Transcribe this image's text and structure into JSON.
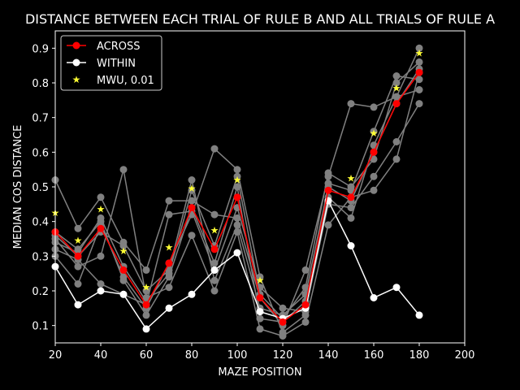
{
  "chart_data": {
    "type": "line",
    "title": "DISTANCE BETWEEN EACH TRIAL OF RULE B AND ALL TRIALS OF RULE A",
    "xlabel": "MAZE POSITION",
    "ylabel": "MEDIAN COS DISTANCE",
    "xlim": [
      20,
      200
    ],
    "ylim": [
      0.05,
      0.95
    ],
    "xticks": [
      20,
      40,
      60,
      80,
      100,
      120,
      140,
      160,
      180,
      200
    ],
    "yticks": [
      0.1,
      0.2,
      0.3,
      0.4,
      0.5,
      0.6,
      0.7,
      0.8,
      0.9
    ],
    "grid": false,
    "legend_position": "upper-left",
    "x": [
      20,
      30,
      40,
      50,
      60,
      70,
      80,
      90,
      100,
      110,
      120,
      130,
      140,
      150,
      160,
      170,
      180
    ],
    "trial_series": [
      {
        "color": "#808080",
        "values": [
          0.52,
          0.38,
          0.47,
          0.34,
          0.26,
          0.46,
          0.46,
          0.42,
          0.41,
          0.18,
          0.1,
          0.26,
          0.53,
          0.74,
          0.73,
          0.76,
          0.9
        ]
      },
      {
        "color": "#808080",
        "values": [
          0.3,
          0.22,
          0.39,
          0.24,
          0.15,
          0.28,
          0.42,
          0.61,
          0.55,
          0.24,
          0.08,
          0.13,
          0.51,
          0.49,
          0.66,
          0.82,
          0.81
        ]
      },
      {
        "color": "#808080",
        "values": [
          0.35,
          0.27,
          0.3,
          0.55,
          0.18,
          0.21,
          0.36,
          0.2,
          0.37,
          0.09,
          0.07,
          0.11,
          0.39,
          0.47,
          0.49,
          0.58,
          0.83
        ]
      },
      {
        "color": "#808080",
        "values": [
          0.37,
          0.32,
          0.4,
          0.23,
          0.13,
          0.24,
          0.44,
          0.28,
          0.5,
          0.12,
          0.11,
          0.17,
          0.47,
          0.41,
          0.62,
          0.76,
          0.78
        ]
      },
      {
        "color": "#808080",
        "values": [
          0.32,
          0.29,
          0.22,
          0.19,
          0.16,
          0.42,
          0.43,
          0.26,
          0.44,
          0.21,
          0.15,
          0.14,
          0.45,
          0.44,
          0.53,
          0.63,
          0.74
        ]
      },
      {
        "color": "#808080",
        "values": [
          0.36,
          0.3,
          0.37,
          0.33,
          0.2,
          0.26,
          0.52,
          0.23,
          0.39,
          0.15,
          0.13,
          0.19,
          0.5,
          0.46,
          0.6,
          0.74,
          0.84
        ]
      },
      {
        "color": "#808080",
        "values": [
          0.34,
          0.31,
          0.41,
          0.27,
          0.17,
          0.25,
          0.49,
          0.33,
          0.53,
          0.19,
          0.12,
          0.21,
          0.54,
          0.5,
          0.58,
          0.8,
          0.86
        ]
      }
    ],
    "series": [
      {
        "name": "ACROSS",
        "color": "#ff0000",
        "values": [
          0.37,
          0.3,
          0.38,
          0.26,
          0.16,
          0.28,
          0.44,
          0.32,
          0.47,
          0.18,
          0.11,
          0.16,
          0.49,
          0.47,
          0.6,
          0.74,
          0.83
        ]
      },
      {
        "name": "WITHIN",
        "color": "#ffffff",
        "values": [
          0.27,
          0.16,
          0.2,
          0.19,
          0.09,
          0.15,
          0.19,
          0.26,
          0.31,
          0.14,
          0.12,
          0.15,
          0.46,
          0.33,
          0.18,
          0.21,
          0.13
        ]
      }
    ],
    "significance": {
      "name": "MWU, 0.01",
      "color": "#ffff33",
      "x": [
        20,
        30,
        40,
        50,
        60,
        70,
        80,
        90,
        100,
        110,
        150,
        160,
        170,
        180
      ],
      "y": [
        0.425,
        0.345,
        0.435,
        0.315,
        0.21,
        0.325,
        0.495,
        0.375,
        0.52,
        0.23,
        0.525,
        0.655,
        0.785,
        0.885
      ]
    }
  }
}
